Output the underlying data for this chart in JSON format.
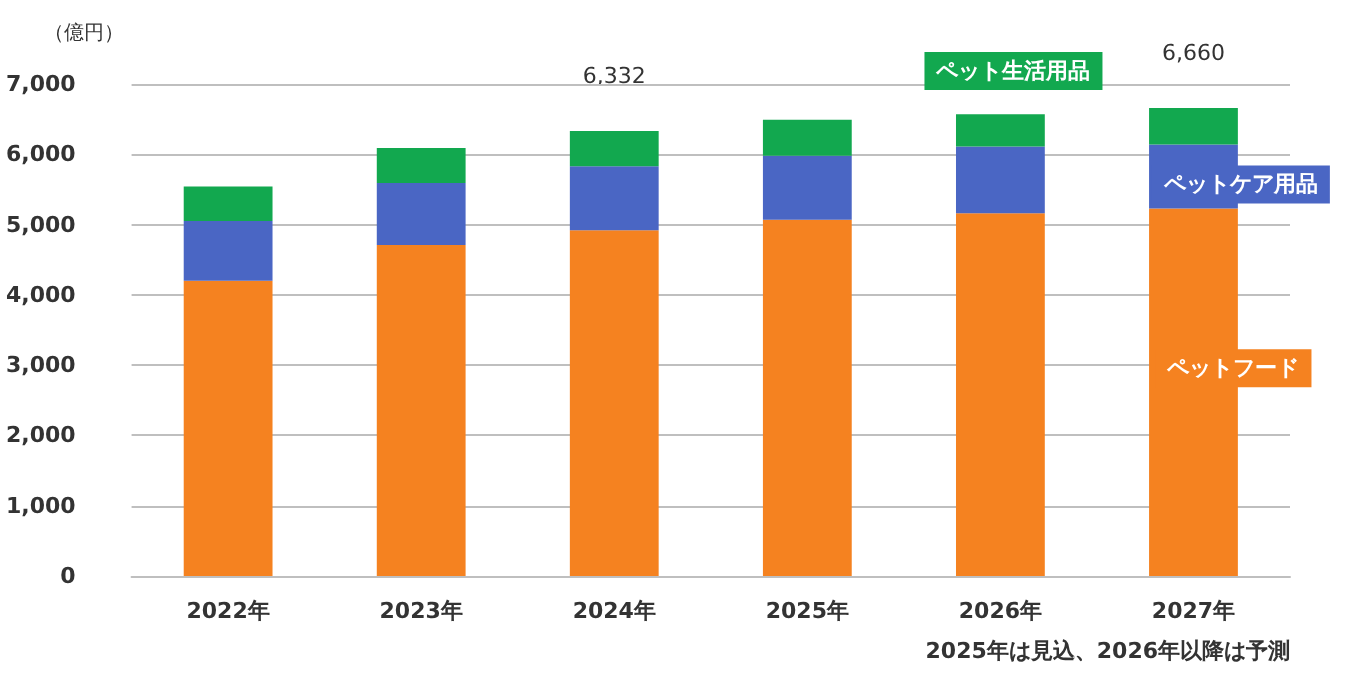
{
  "chart_data": {
    "type": "bar",
    "stacked": true,
    "ylabel": "（億円）",
    "categories": [
      "2022年",
      "2023年",
      "2024年",
      "2025年",
      "2026年",
      "2027年"
    ],
    "series": [
      {
        "name": "ペットフード",
        "color": "#f58220",
        "values": [
          4200,
          4710,
          4920,
          5070,
          5160,
          5230
        ]
      },
      {
        "name": "ペットケア用品",
        "color": "#4a66c4",
        "values": [
          850,
          880,
          910,
          910,
          950,
          910
        ]
      },
      {
        "name": "ペット生活用品",
        "color": "#12a84f",
        "values": [
          490,
          500,
          500,
          510,
          460,
          520
        ]
      }
    ],
    "totals": [
      null,
      null,
      "6,332",
      null,
      null,
      "6,660"
    ],
    "ylim": [
      0,
      7000
    ],
    "yticks": [
      {
        "value": 0,
        "label": "0"
      },
      {
        "value": 1000,
        "label": "1,000"
      },
      {
        "value": 2000,
        "label": "2,000"
      },
      {
        "value": 3000,
        "label": "3,000"
      },
      {
        "value": 4000,
        "label": "4,000"
      },
      {
        "value": 5000,
        "label": "5,000"
      },
      {
        "value": 6000,
        "label": "6,000"
      },
      {
        "value": 7000,
        "label": "7,000"
      }
    ],
    "grid": "y",
    "legend": false,
    "annotations": [
      "2025年は見込、2026年以降は予測"
    ]
  }
}
